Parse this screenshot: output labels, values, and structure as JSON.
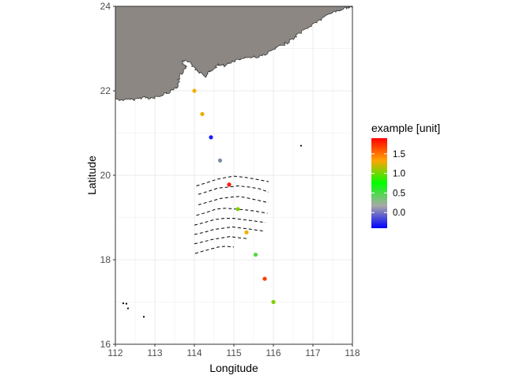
{
  "chart_data": {
    "type": "scatter",
    "map": true,
    "xlabel": "Longitude",
    "ylabel": "Latitude",
    "xlim": [
      112,
      118
    ],
    "ylim": [
      16,
      24
    ],
    "x_ticks": [
      112,
      113,
      114,
      115,
      116,
      117,
      118
    ],
    "y_ticks": [
      16,
      18,
      20,
      22,
      24
    ],
    "grid": true,
    "colors": {
      "land": "#8c8782",
      "grid": "#ebebeb",
      "contour": "#000000",
      "gradient": [
        "#0000ff",
        "#a9a9a9",
        "#00ff00",
        "#ffa500",
        "#ff0000"
      ]
    },
    "legend": {
      "title": "example [unit]",
      "placement": "right",
      "range": [
        -0.4,
        1.9
      ],
      "ticks": [
        "0.0",
        "0.5",
        "1.0",
        "1.5"
      ],
      "tick_values": [
        0.0,
        0.5,
        1.0,
        1.5
      ]
    },
    "points": [
      {
        "lon": 114.0,
        "lat": 22.0,
        "value": 1.15,
        "color": "#f0b000"
      },
      {
        "lon": 114.2,
        "lat": 21.45,
        "value": 1.2,
        "color": "#f0a800"
      },
      {
        "lon": 114.42,
        "lat": 20.9,
        "value": -0.35,
        "color": "#1a1aff"
      },
      {
        "lon": 114.65,
        "lat": 20.35,
        "value": 0.05,
        "color": "#7b8ea8"
      },
      {
        "lon": 114.88,
        "lat": 19.78,
        "value": 1.85,
        "color": "#ff1a00"
      },
      {
        "lon": 115.1,
        "lat": 19.2,
        "value": 0.6,
        "color": "#80d000"
      },
      {
        "lon": 115.32,
        "lat": 18.65,
        "value": 1.15,
        "color": "#f0b000"
      },
      {
        "lon": 115.55,
        "lat": 18.12,
        "value": 0.45,
        "color": "#55d840"
      },
      {
        "lon": 115.78,
        "lat": 17.55,
        "value": 1.75,
        "color": "#ff3a00"
      },
      {
        "lon": 116.0,
        "lat": 17.0,
        "value": 0.6,
        "color": "#80d000"
      }
    ],
    "islands": [
      {
        "lon": 116.7,
        "lat": 20.7
      },
      {
        "lon": 112.2,
        "lat": 16.97
      },
      {
        "lon": 112.28,
        "lat": 16.96
      },
      {
        "lon": 112.32,
        "lat": 16.85
      },
      {
        "lon": 112.72,
        "lat": 16.65
      }
    ],
    "coastline": [
      [
        112,
        21.8
      ],
      [
        112.25,
        21.78
      ],
      [
        112.5,
        21.8
      ],
      [
        112.75,
        21.85
      ],
      [
        112.95,
        21.82
      ],
      [
        113.15,
        21.88
      ],
      [
        113.3,
        21.95
      ],
      [
        113.45,
        22.02
      ],
      [
        113.58,
        22.1
      ],
      [
        113.62,
        22.32
      ],
      [
        113.72,
        22.45
      ],
      [
        113.8,
        22.55
      ],
      [
        113.68,
        22.72
      ],
      [
        113.9,
        22.68
      ],
      [
        114.02,
        22.52
      ],
      [
        114.15,
        22.42
      ],
      [
        114.28,
        22.33
      ],
      [
        114.38,
        22.45
      ],
      [
        114.5,
        22.52
      ],
      [
        114.62,
        22.62
      ],
      [
        114.78,
        22.58
      ],
      [
        114.9,
        22.68
      ],
      [
        115.05,
        22.72
      ],
      [
        115.25,
        22.78
      ],
      [
        115.5,
        22.8
      ],
      [
        115.7,
        22.82
      ],
      [
        115.9,
        22.92
      ],
      [
        116.1,
        23.02
      ],
      [
        116.3,
        23.12
      ],
      [
        116.5,
        23.22
      ],
      [
        116.65,
        23.35
      ],
      [
        116.82,
        23.45
      ],
      [
        117.0,
        23.58
      ],
      [
        117.2,
        23.68
      ],
      [
        117.38,
        23.8
      ],
      [
        117.55,
        23.88
      ],
      [
        117.72,
        23.92
      ],
      [
        117.88,
        23.97
      ],
      [
        118,
        24
      ],
      [
        118,
        24
      ],
      [
        112,
        24
      ]
    ],
    "contours": [
      [
        [
          114.05,
          19.75
        ],
        [
          114.3,
          19.82
        ],
        [
          114.55,
          19.9
        ],
        [
          114.8,
          19.95
        ],
        [
          115.0,
          19.98
        ],
        [
          115.3,
          19.95
        ],
        [
          115.6,
          19.9
        ],
        [
          115.88,
          19.85
        ]
      ],
      [
        [
          114.1,
          19.55
        ],
        [
          114.35,
          19.62
        ],
        [
          114.6,
          19.7
        ],
        [
          114.85,
          19.72
        ],
        [
          115.1,
          19.75
        ],
        [
          115.4,
          19.72
        ],
        [
          115.65,
          19.68
        ],
        [
          115.88,
          19.6
        ]
      ],
      [
        [
          114.1,
          19.3
        ],
        [
          114.4,
          19.38
        ],
        [
          114.65,
          19.45
        ],
        [
          114.9,
          19.48
        ],
        [
          115.15,
          19.5
        ],
        [
          115.4,
          19.45
        ],
        [
          115.65,
          19.4
        ],
        [
          115.88,
          19.35
        ]
      ],
      [
        [
          114.05,
          19.05
        ],
        [
          114.3,
          19.12
        ],
        [
          114.55,
          19.2
        ],
        [
          114.8,
          19.22
        ],
        [
          115.05,
          19.2
        ],
        [
          115.3,
          19.18
        ],
        [
          115.55,
          19.15
        ],
        [
          115.85,
          19.1
        ]
      ],
      [
        [
          114.0,
          18.82
        ],
        [
          114.25,
          18.88
        ],
        [
          114.5,
          18.95
        ],
        [
          114.75,
          18.98
        ],
        [
          115.0,
          18.98
        ],
        [
          115.25,
          18.95
        ],
        [
          115.5,
          18.92
        ],
        [
          115.8,
          18.88
        ]
      ],
      [
        [
          114.0,
          18.6
        ],
        [
          114.25,
          18.65
        ],
        [
          114.5,
          18.72
        ],
        [
          114.75,
          18.75
        ],
        [
          114.95,
          18.78
        ],
        [
          115.2,
          18.75
        ],
        [
          115.45,
          18.72
        ],
        [
          115.75,
          18.68
        ]
      ],
      [
        [
          114.0,
          18.38
        ],
        [
          114.2,
          18.42
        ],
        [
          114.45,
          18.48
        ],
        [
          114.7,
          18.52
        ],
        [
          114.9,
          18.55
        ],
        [
          115.15,
          18.52
        ],
        [
          115.35,
          18.5
        ]
      ],
      [
        [
          114.02,
          18.15
        ],
        [
          114.2,
          18.2
        ],
        [
          114.4,
          18.25
        ],
        [
          114.6,
          18.3
        ],
        [
          114.8,
          18.32
        ],
        [
          115.0,
          18.3
        ]
      ]
    ]
  }
}
